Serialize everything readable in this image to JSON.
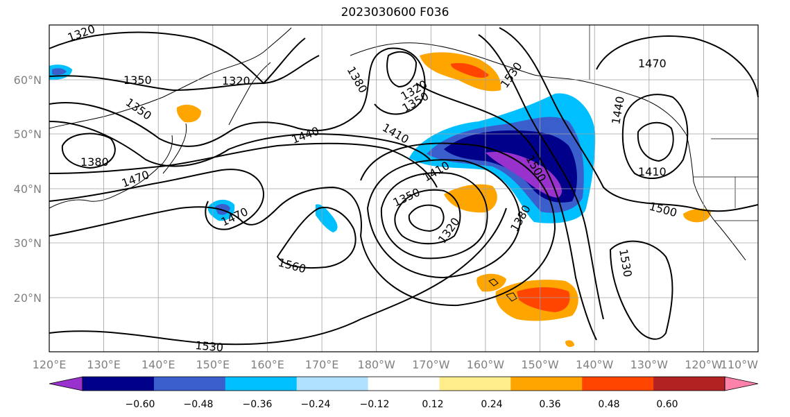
{
  "map": {
    "title": "2023030600 F036",
    "lat_labels": [
      "60°N",
      "50°N",
      "40°N",
      "30°N",
      "20°N"
    ],
    "lon_labels": [
      "120°E",
      "130°E",
      "140°E",
      "150°E",
      "160°E",
      "170°E",
      "180°W",
      "170°W",
      "160°W",
      "150°W",
      "140°W",
      "130°W",
      "120°W",
      "110°W"
    ],
    "contour_labels": [
      "1320",
      "1350",
      "1320",
      "1380",
      "1320",
      "1350",
      "1530",
      "1470",
      "1380",
      "1350",
      "1410",
      "1440",
      "1440",
      "1500",
      "1410",
      "1470",
      "1410",
      "1350",
      "1470",
      "1320",
      "1380",
      "1500",
      "1560",
      "1530",
      "1530"
    ]
  },
  "colorbar": {
    "labels": [
      "−0.60",
      "−0.48",
      "−0.36",
      "−0.24",
      "−0.12",
      "0.12",
      "0.24",
      "0.36",
      "0.48",
      "0.60"
    ],
    "colors": [
      "#9932cc",
      "#00008b",
      "#3a5fcd",
      "#00bfff",
      "#b0e2ff",
      "#ffffff",
      "#ffec8b",
      "#ffa500",
      "#ff4500",
      "#b22222",
      "#ff82ab"
    ]
  }
}
